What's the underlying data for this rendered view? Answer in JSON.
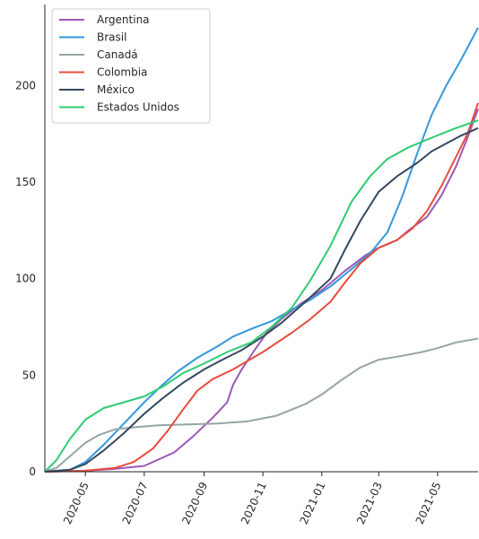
{
  "chart_data": {
    "type": "line",
    "x_type": "date",
    "xlim": [
      "2020-03-20",
      "2021-06-12"
    ],
    "ylim": [
      0,
      242
    ],
    "grid": false,
    "legend_position": "top-left",
    "xticks": [
      "2020-05-01",
      "2020-07-01",
      "2020-09-01",
      "2020-11-01",
      "2021-01-01",
      "2021-03-01",
      "2021-05-01"
    ],
    "xtick_labels": [
      "2020-05",
      "2020-07",
      "2020-09",
      "2020-11",
      "2021-01",
      "2021-03",
      "2021-05"
    ],
    "yticks": [
      0,
      50,
      100,
      150,
      200
    ],
    "ytick_labels": [
      "0",
      "50",
      "100",
      "150",
      "200"
    ],
    "series": [
      {
        "name": "Argentina",
        "color": "#9b59b6",
        "points": [
          [
            "2020-03-20",
            0
          ],
          [
            "2020-05-01",
            0.5
          ],
          [
            "2020-06-01",
            1.5
          ],
          [
            "2020-07-01",
            3
          ],
          [
            "2020-08-01",
            10
          ],
          [
            "2020-08-20",
            18
          ],
          [
            "2020-09-10",
            28
          ],
          [
            "2020-09-25",
            36
          ],
          [
            "2020-10-01",
            45
          ],
          [
            "2020-10-10",
            53
          ],
          [
            "2020-10-22",
            62
          ],
          [
            "2020-11-05",
            72
          ],
          [
            "2020-11-20",
            79
          ],
          [
            "2020-12-10",
            87
          ],
          [
            "2021-01-01",
            94
          ],
          [
            "2021-01-25",
            104
          ],
          [
            "2021-02-15",
            112
          ],
          [
            "2021-03-01",
            116
          ],
          [
            "2021-03-20",
            120
          ],
          [
            "2021-04-01",
            125
          ],
          [
            "2021-04-20",
            132
          ],
          [
            "2021-05-05",
            143
          ],
          [
            "2021-05-20",
            158
          ],
          [
            "2021-06-01",
            173
          ],
          [
            "2021-06-12",
            188
          ]
        ]
      },
      {
        "name": "Brasil",
        "color": "#3498db",
        "points": [
          [
            "2020-03-20",
            0
          ],
          [
            "2020-04-15",
            1
          ],
          [
            "2020-05-01",
            5
          ],
          [
            "2020-05-20",
            14
          ],
          [
            "2020-06-10",
            25
          ],
          [
            "2020-07-01",
            36
          ],
          [
            "2020-07-20",
            45
          ],
          [
            "2020-08-05",
            52
          ],
          [
            "2020-08-25",
            59
          ],
          [
            "2020-09-15",
            65
          ],
          [
            "2020-10-01",
            70
          ],
          [
            "2020-10-20",
            74
          ],
          [
            "2020-11-10",
            78
          ],
          [
            "2020-12-01",
            84
          ],
          [
            "2020-12-20",
            89
          ],
          [
            "2021-01-10",
            96
          ],
          [
            "2021-02-01",
            105
          ],
          [
            "2021-02-20",
            113
          ],
          [
            "2021-03-10",
            124
          ],
          [
            "2021-03-25",
            142
          ],
          [
            "2021-04-10",
            165
          ],
          [
            "2021-04-25",
            185
          ],
          [
            "2021-05-10",
            200
          ],
          [
            "2021-05-25",
            213
          ],
          [
            "2021-06-12",
            230
          ]
        ]
      },
      {
        "name": "Canadá",
        "color": "#95a5a6",
        "points": [
          [
            "2020-03-20",
            0
          ],
          [
            "2020-04-01",
            2
          ],
          [
            "2020-04-15",
            8
          ],
          [
            "2020-05-01",
            15
          ],
          [
            "2020-05-15",
            19
          ],
          [
            "2020-06-01",
            22
          ],
          [
            "2020-06-20",
            23
          ],
          [
            "2020-07-15",
            24
          ],
          [
            "2020-08-15",
            24.5
          ],
          [
            "2020-09-15",
            25
          ],
          [
            "2020-10-15",
            26
          ],
          [
            "2020-11-15",
            29
          ],
          [
            "2020-12-15",
            35
          ],
          [
            "2021-01-01",
            40
          ],
          [
            "2021-01-20",
            47
          ],
          [
            "2021-02-10",
            54
          ],
          [
            "2021-03-01",
            58
          ],
          [
            "2021-03-25",
            60
          ],
          [
            "2021-04-15",
            62
          ],
          [
            "2021-05-01",
            64
          ],
          [
            "2021-05-20",
            67
          ],
          [
            "2021-06-12",
            69
          ]
        ]
      },
      {
        "name": "Colombia",
        "color": "#e74c3c",
        "points": [
          [
            "2020-03-20",
            0
          ],
          [
            "2020-05-01",
            0.5
          ],
          [
            "2020-06-01",
            2
          ],
          [
            "2020-06-20",
            5
          ],
          [
            "2020-07-10",
            12
          ],
          [
            "2020-07-25",
            21
          ],
          [
            "2020-08-10",
            32
          ],
          [
            "2020-08-25",
            42
          ],
          [
            "2020-09-10",
            48
          ],
          [
            "2020-10-01",
            53
          ],
          [
            "2020-11-01",
            62
          ],
          [
            "2020-12-01",
            72
          ],
          [
            "2020-12-20",
            79
          ],
          [
            "2021-01-10",
            88
          ],
          [
            "2021-01-25",
            98
          ],
          [
            "2021-02-10",
            108
          ],
          [
            "2021-03-01",
            116
          ],
          [
            "2021-03-20",
            120
          ],
          [
            "2021-04-05",
            126
          ],
          [
            "2021-04-20",
            135
          ],
          [
            "2021-05-05",
            148
          ],
          [
            "2021-05-20",
            163
          ],
          [
            "2021-06-01",
            175
          ],
          [
            "2021-06-12",
            191
          ]
        ]
      },
      {
        "name": "México",
        "color": "#34495e",
        "points": [
          [
            "2020-03-20",
            0
          ],
          [
            "2020-04-15",
            1
          ],
          [
            "2020-05-01",
            4
          ],
          [
            "2020-05-20",
            11
          ],
          [
            "2020-06-10",
            20
          ],
          [
            "2020-07-01",
            30
          ],
          [
            "2020-07-20",
            38
          ],
          [
            "2020-08-10",
            46
          ],
          [
            "2020-09-01",
            53
          ],
          [
            "2020-09-20",
            58
          ],
          [
            "2020-10-10",
            63
          ],
          [
            "2020-11-01",
            70
          ],
          [
            "2020-11-20",
            77
          ],
          [
            "2020-12-15",
            88
          ],
          [
            "2021-01-10",
            100
          ],
          [
            "2021-01-25",
            115
          ],
          [
            "2021-02-10",
            130
          ],
          [
            "2021-03-01",
            145
          ],
          [
            "2021-03-20",
            153
          ],
          [
            "2021-04-10",
            160
          ],
          [
            "2021-04-25",
            166
          ],
          [
            "2021-05-10",
            170
          ],
          [
            "2021-05-25",
            174
          ],
          [
            "2021-06-12",
            178
          ]
        ]
      },
      {
        "name": "Estados Unidos",
        "color": "#2ecc71",
        "points": [
          [
            "2020-03-20",
            0
          ],
          [
            "2020-04-01",
            6
          ],
          [
            "2020-04-15",
            17
          ],
          [
            "2020-05-01",
            27
          ],
          [
            "2020-05-20",
            33
          ],
          [
            "2020-06-10",
            36
          ],
          [
            "2020-07-01",
            39
          ],
          [
            "2020-07-20",
            44
          ],
          [
            "2020-08-10",
            51
          ],
          [
            "2020-09-01",
            56
          ],
          [
            "2020-09-25",
            62
          ],
          [
            "2020-10-20",
            67
          ],
          [
            "2020-11-10",
            75
          ],
          [
            "2020-12-01",
            85
          ],
          [
            "2020-12-20",
            99
          ],
          [
            "2021-01-10",
            117
          ],
          [
            "2021-02-01",
            140
          ],
          [
            "2021-02-20",
            153
          ],
          [
            "2021-03-10",
            162
          ],
          [
            "2021-04-01",
            168
          ],
          [
            "2021-04-25",
            173
          ],
          [
            "2021-05-20",
            178
          ],
          [
            "2021-06-12",
            182
          ]
        ]
      }
    ]
  }
}
